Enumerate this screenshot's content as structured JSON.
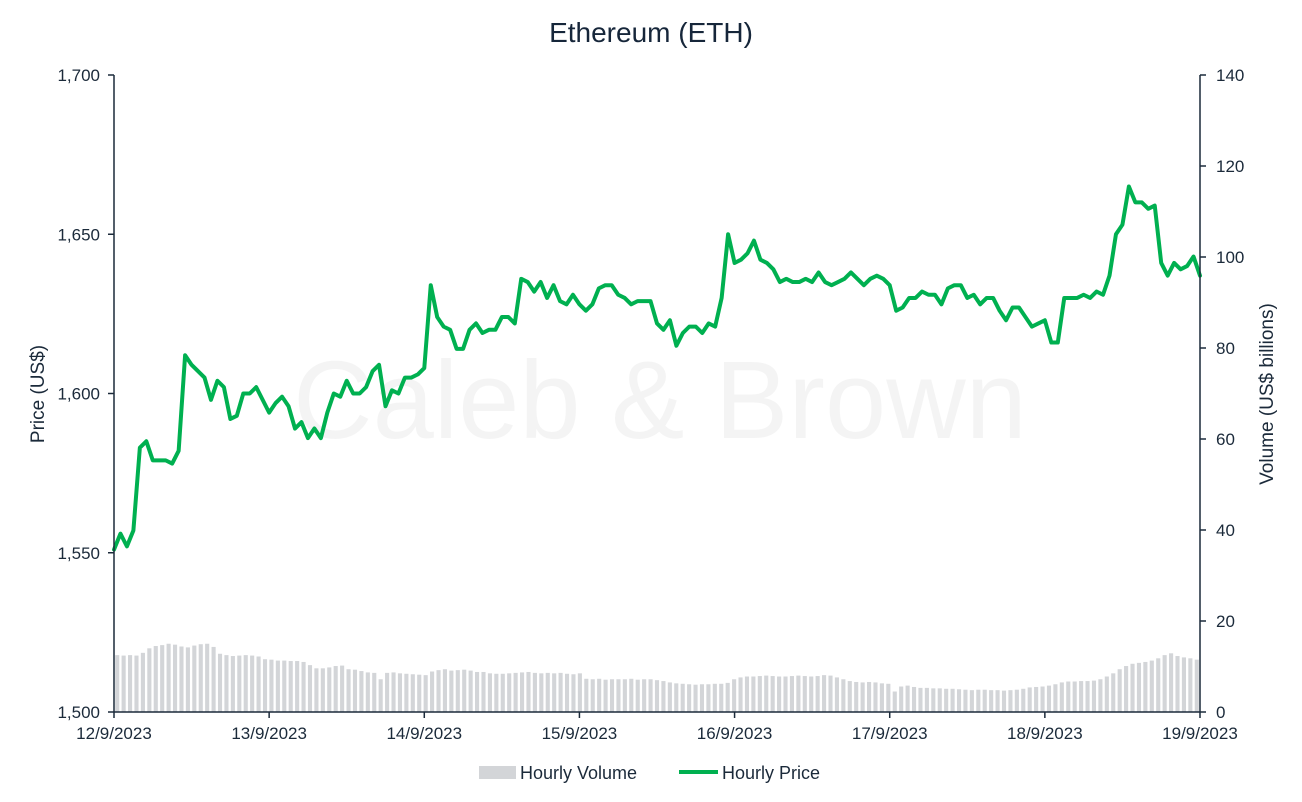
{
  "chart_data": {
    "type": "line",
    "title": "Ethereum (ETH)",
    "watermark": "Caleb & Brown",
    "ylabel": "Price (US$)",
    "y2label": "Volume (US$ billions)",
    "ylim": [
      1500,
      1700
    ],
    "y2lim": [
      0,
      140
    ],
    "yticks": [
      "1,500",
      "1,550",
      "1,600",
      "1,650",
      "1,700"
    ],
    "y2ticks": [
      "0",
      "20",
      "40",
      "60",
      "80",
      "100",
      "120",
      "140"
    ],
    "xticks": [
      "12/9/2023",
      "13/9/2023",
      "14/9/2023",
      "15/9/2023",
      "16/9/2023",
      "17/9/2023",
      "18/9/2023",
      "19/9/2023"
    ],
    "x_range_hours": [
      0,
      168
    ],
    "legend": {
      "placement": "bottom-center",
      "volume_label": "Hourly Volume",
      "price_label": "Hourly Price"
    },
    "colors": {
      "price": "#00b050",
      "volume": "#d3d5d8",
      "axis": "#1b2a3a"
    },
    "series": [
      {
        "name": "Hourly Price",
        "kind": "line",
        "axis": "left",
        "points": [
          [
            0,
            1551
          ],
          [
            1,
            1556
          ],
          [
            2,
            1552
          ],
          [
            3,
            1557
          ],
          [
            4,
            1583
          ],
          [
            5,
            1585
          ],
          [
            6,
            1579
          ],
          [
            7,
            1579
          ],
          [
            8,
            1579
          ],
          [
            9,
            1578
          ],
          [
            10,
            1582
          ],
          [
            11,
            1612
          ],
          [
            12,
            1609
          ],
          [
            13,
            1607
          ],
          [
            14,
            1605
          ],
          [
            15,
            1598
          ],
          [
            16,
            1604
          ],
          [
            17,
            1602
          ],
          [
            18,
            1592
          ],
          [
            19,
            1593
          ],
          [
            20,
            1600
          ],
          [
            21,
            1600
          ],
          [
            22,
            1602
          ],
          [
            23,
            1598
          ],
          [
            24,
            1594
          ],
          [
            25,
            1597
          ],
          [
            26,
            1599
          ],
          [
            27,
            1596
          ],
          [
            28,
            1589
          ],
          [
            29,
            1591
          ],
          [
            30,
            1586
          ],
          [
            31,
            1589
          ],
          [
            32,
            1586
          ],
          [
            33,
            1594
          ],
          [
            34,
            1600
          ],
          [
            35,
            1599
          ],
          [
            36,
            1604
          ],
          [
            37,
            1600
          ],
          [
            38,
            1600
          ],
          [
            39,
            1602
          ],
          [
            40,
            1607
          ],
          [
            41,
            1609
          ],
          [
            42,
            1596
          ],
          [
            43,
            1601
          ],
          [
            44,
            1600
          ],
          [
            45,
            1605
          ],
          [
            46,
            1605
          ],
          [
            47,
            1606
          ],
          [
            48,
            1608
          ],
          [
            49,
            1634
          ],
          [
            50,
            1624
          ],
          [
            51,
            1621
          ],
          [
            52,
            1620
          ],
          [
            53,
            1614
          ],
          [
            54,
            1614
          ],
          [
            55,
            1620
          ],
          [
            56,
            1622
          ],
          [
            57,
            1619
          ],
          [
            58,
            1620
          ],
          [
            59,
            1620
          ],
          [
            60,
            1624
          ],
          [
            61,
            1624
          ],
          [
            62,
            1622
          ],
          [
            63,
            1636
          ],
          [
            64,
            1635
          ],
          [
            65,
            1632
          ],
          [
            66,
            1635
          ],
          [
            67,
            1630
          ],
          [
            68,
            1634
          ],
          [
            69,
            1629
          ],
          [
            70,
            1628
          ],
          [
            71,
            1631
          ],
          [
            72,
            1628
          ],
          [
            73,
            1626
          ],
          [
            74,
            1628
          ],
          [
            75,
            1633
          ],
          [
            76,
            1634
          ],
          [
            77,
            1634
          ],
          [
            78,
            1631
          ],
          [
            79,
            1630
          ],
          [
            80,
            1628
          ],
          [
            81,
            1629
          ],
          [
            82,
            1629
          ],
          [
            83,
            1629
          ],
          [
            84,
            1622
          ],
          [
            85,
            1620
          ],
          [
            86,
            1623
          ],
          [
            87,
            1615
          ],
          [
            88,
            1619
          ],
          [
            89,
            1621
          ],
          [
            90,
            1621
          ],
          [
            91,
            1619
          ],
          [
            92,
            1622
          ],
          [
            93,
            1621
          ],
          [
            94,
            1630
          ],
          [
            95,
            1650
          ],
          [
            96,
            1641
          ],
          [
            97,
            1642
          ],
          [
            98,
            1644
          ],
          [
            99,
            1648
          ],
          [
            100,
            1642
          ],
          [
            101,
            1641
          ],
          [
            102,
            1639
          ],
          [
            103,
            1635
          ],
          [
            104,
            1636
          ],
          [
            105,
            1635
          ],
          [
            106,
            1635
          ],
          [
            107,
            1636
          ],
          [
            108,
            1635
          ],
          [
            109,
            1638
          ],
          [
            110,
            1635
          ],
          [
            111,
            1634
          ],
          [
            112,
            1635
          ],
          [
            113,
            1636
          ],
          [
            114,
            1638
          ],
          [
            115,
            1636
          ],
          [
            116,
            1634
          ],
          [
            117,
            1636
          ],
          [
            118,
            1637
          ],
          [
            119,
            1636
          ],
          [
            120,
            1634
          ],
          [
            121,
            1626
          ],
          [
            122,
            1627
          ],
          [
            123,
            1630
          ],
          [
            124,
            1630
          ],
          [
            125,
            1632
          ],
          [
            126,
            1631
          ],
          [
            127,
            1631
          ],
          [
            128,
            1628
          ],
          [
            129,
            1633
          ],
          [
            130,
            1634
          ],
          [
            131,
            1634
          ],
          [
            132,
            1630
          ],
          [
            133,
            1631
          ],
          [
            134,
            1628
          ],
          [
            135,
            1630
          ],
          [
            136,
            1630
          ],
          [
            137,
            1626
          ],
          [
            138,
            1623
          ],
          [
            139,
            1627
          ],
          [
            140,
            1627
          ],
          [
            141,
            1624
          ],
          [
            142,
            1621
          ],
          [
            143,
            1622
          ],
          [
            144,
            1623
          ],
          [
            145,
            1616
          ],
          [
            146,
            1616
          ],
          [
            147,
            1630
          ],
          [
            148,
            1630
          ],
          [
            149,
            1630
          ],
          [
            150,
            1631
          ],
          [
            151,
            1630
          ],
          [
            152,
            1632
          ],
          [
            153,
            1631
          ],
          [
            154,
            1637
          ],
          [
            155,
            1650
          ],
          [
            156,
            1653
          ],
          [
            157,
            1665
          ],
          [
            158,
            1660
          ],
          [
            159,
            1660
          ],
          [
            160,
            1658
          ],
          [
            161,
            1659
          ],
          [
            162,
            1641
          ],
          [
            163,
            1637
          ],
          [
            164,
            1641
          ],
          [
            165,
            1639
          ],
          [
            166,
            1640
          ],
          [
            167,
            1643
          ],
          [
            168,
            1637
          ]
        ]
      },
      {
        "name": "Hourly Volume",
        "kind": "bar",
        "axis": "right",
        "unit": "US$ billions",
        "values": [
          12.5,
          12.4,
          12.5,
          12.4,
          13,
          14,
          14.5,
          14.7,
          15,
          14.8,
          14.4,
          14.2,
          14.6,
          14.9,
          15,
          14.3,
          12.8,
          12.5,
          12.3,
          12.4,
          12.5,
          12.4,
          12.2,
          11.6,
          11.5,
          11.3,
          11.3,
          11.2,
          11.2,
          11,
          10.3,
          9.6,
          9.6,
          9.8,
          10.1,
          10.2,
          9.4,
          9.3,
          9,
          8.7,
          8.6,
          7.2,
          8.6,
          8.7,
          8.5,
          8.4,
          8.3,
          8.2,
          8.1,
          8.9,
          9.2,
          9.4,
          9.1,
          9.2,
          9.3,
          9.1,
          8.8,
          8.8,
          8.5,
          8.4,
          8.4,
          8.5,
          8.6,
          8.7,
          8.8,
          8.6,
          8.5,
          8.6,
          8.5,
          8.6,
          8.4,
          8.3,
          8.5,
          7.3,
          7.2,
          7.3,
          7.1,
          7.2,
          7.2,
          7.2,
          7.3,
          7.1,
          7.2,
          7.2,
          7,
          6.8,
          6.5,
          6.3,
          6.2,
          6.1,
          6,
          6.1,
          6.1,
          6.2,
          6.2,
          6.4,
          7.2,
          7.6,
          7.8,
          7.8,
          7.9,
          8,
          7.9,
          7.8,
          7.8,
          7.9,
          8,
          7.9,
          7.8,
          7.9,
          8.1,
          8,
          7.6,
          7.2,
          6.8,
          6.6,
          6.5,
          6.6,
          6.5,
          6.3,
          6.2,
          4.5,
          5.6,
          5.8,
          5.5,
          5.3,
          5.3,
          5.2,
          5.2,
          5.1,
          5.1,
          5,
          4.9,
          4.8,
          4.9,
          4.9,
          4.8,
          4.8,
          4.7,
          4.8,
          4.9,
          5.1,
          5.4,
          5.5,
          5.6,
          5.8,
          6.1,
          6.5,
          6.7,
          6.7,
          6.8,
          6.8,
          6.9,
          7.2,
          7.8,
          8.5,
          9.4,
          10.1,
          10.6,
          10.8,
          11,
          11.3,
          11.8,
          12.5,
          12.9,
          12.3,
          12,
          11.8,
          11.5
        ]
      }
    ]
  }
}
